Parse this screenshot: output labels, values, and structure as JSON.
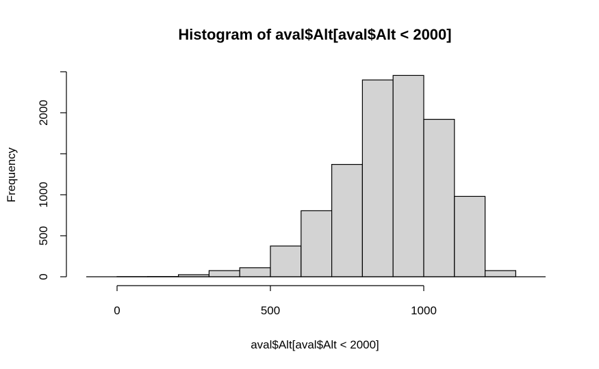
{
  "chart_data": {
    "type": "bar",
    "title": "Histogram of aval$Alt[aval$Alt < 2000]",
    "xlabel": "aval$Alt[aval$Alt < 2000]",
    "ylabel": "Frequency",
    "bin_width": 100,
    "bins": [
      {
        "start": 0,
        "end": 100,
        "count": 2
      },
      {
        "start": 100,
        "end": 200,
        "count": 3
      },
      {
        "start": 200,
        "end": 300,
        "count": 25
      },
      {
        "start": 300,
        "end": 400,
        "count": 75
      },
      {
        "start": 400,
        "end": 500,
        "count": 110
      },
      {
        "start": 500,
        "end": 600,
        "count": 375
      },
      {
        "start": 600,
        "end": 700,
        "count": 805
      },
      {
        "start": 700,
        "end": 800,
        "count": 1370
      },
      {
        "start": 800,
        "end": 900,
        "count": 2400
      },
      {
        "start": 900,
        "end": 1000,
        "count": 2455
      },
      {
        "start": 1000,
        "end": 1100,
        "count": 1920
      },
      {
        "start": 1100,
        "end": 1200,
        "count": 980
      },
      {
        "start": 1200,
        "end": 1300,
        "count": 75
      }
    ],
    "x_ticks": [
      0,
      500,
      1000
    ],
    "x_tick_labels": [
      "0",
      "500",
      "1000"
    ],
    "y_ticks": [
      0,
      500,
      1000,
      1500,
      2000,
      2500
    ],
    "y_tick_labels": [
      "0",
      "500",
      "1000",
      "",
      "2000",
      ""
    ],
    "xlim": [
      -100,
      1400
    ],
    "ylim": [
      0,
      2500
    ],
    "grid": false,
    "colors": {
      "bar_fill": "#d3d3d3",
      "bar_stroke": "#000000"
    }
  }
}
